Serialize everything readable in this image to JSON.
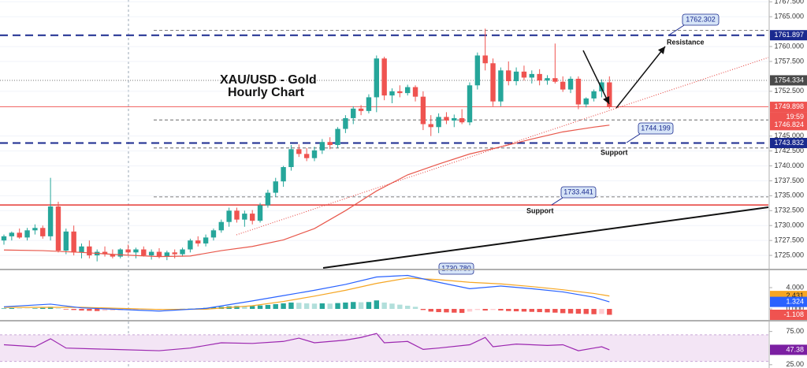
{
  "chart_data": [
    {
      "type": "candlestick",
      "title": "XAU/USD - Gold",
      "subtitle": "Hourly Chart",
      "open": [
        1727.5,
        1728.2,
        1728.8,
        1728,
        1729.2,
        1729.6,
        1728.2,
        1733.2,
        1725.8,
        1729,
        1725.5,
        1726.5,
        1725,
        1725.6,
        1725.2,
        1724.8,
        1726,
        1725.5,
        1726,
        1725,
        1725.6,
        1724.8,
        1725.5,
        1725.2,
        1726,
        1727.5,
        1727,
        1728,
        1729.2,
        1730.6,
        1732.5,
        1731,
        1732,
        1730.8,
        1733.4,
        1735.5,
        1737.4,
        1739.8,
        1742.8,
        1742,
        1741.3,
        1742.6,
        1744,
        1743.5,
        1746.2,
        1748,
        1749.6,
        1749.2,
        1751.5,
        1758,
        1751.8,
        1752.5,
        1752.2,
        1753.2,
        1751.6,
        1747,
        1746.5,
        1748.2,
        1747.6,
        1748,
        1747.3,
        1753.5,
        1758.5,
        1757.2,
        1750.8,
        1756,
        1754.2,
        1755.8,
        1754.8,
        1755.4,
        1754.3,
        1754.7,
        1754.1,
        1752.8,
        1754.6,
        1750.3,
        1751.3,
        1752.5,
        1754
      ],
      "high": [
        1728.5,
        1729,
        1729.5,
        1729.6,
        1730.2,
        1730,
        1738,
        1734,
        1729.5,
        1730,
        1727,
        1727.5,
        1726,
        1726.5,
        1726,
        1726.2,
        1726.8,
        1726.3,
        1726.5,
        1726,
        1726.2,
        1725.8,
        1726,
        1726.3,
        1727.8,
        1728.2,
        1728.5,
        1729.5,
        1731,
        1733,
        1733,
        1732.5,
        1732.6,
        1733.8,
        1736,
        1738,
        1740,
        1743.5,
        1743.6,
        1743,
        1743.2,
        1744.5,
        1744.8,
        1746.5,
        1748.5,
        1750,
        1750.2,
        1752,
        1758.5,
        1758.3,
        1753,
        1753.5,
        1753.6,
        1753.5,
        1752.5,
        1748.5,
        1748.8,
        1749,
        1748.6,
        1749.5,
        1754,
        1759,
        1763,
        1758,
        1756.5,
        1757.5,
        1756.5,
        1756.8,
        1756,
        1756.2,
        1755.2,
        1760.5,
        1755,
        1755,
        1755,
        1751.5,
        1752.8,
        1754.5,
        1755
      ],
      "low": [
        1726.8,
        1727.5,
        1727.8,
        1727.5,
        1728.5,
        1727.8,
        1727.5,
        1725.5,
        1725.2,
        1725,
        1724.5,
        1724.5,
        1724,
        1724.8,
        1724.5,
        1724.5,
        1725,
        1724.5,
        1724.8,
        1724.3,
        1724.5,
        1724.2,
        1724.5,
        1724.8,
        1725.5,
        1726.5,
        1726.5,
        1727.5,
        1728.8,
        1729.8,
        1730.5,
        1729.8,
        1730.2,
        1730.5,
        1733,
        1734.8,
        1736.5,
        1739.2,
        1741.5,
        1740.8,
        1740.8,
        1742,
        1742.8,
        1743,
        1745.5,
        1747,
        1748.5,
        1748.8,
        1749,
        1751,
        1750.5,
        1751.5,
        1751.8,
        1750.8,
        1746,
        1745,
        1745.5,
        1747,
        1746.5,
        1747,
        1746.8,
        1752.8,
        1756,
        1750,
        1750,
        1753.5,
        1753.5,
        1754.3,
        1753.8,
        1753.5,
        1753.6,
        1753.8,
        1752.4,
        1752.2,
        1749.5,
        1749.8,
        1750.8,
        1751.5,
        1749.6
      ],
      "close": [
        1728.2,
        1728.8,
        1728,
        1729.2,
        1729.6,
        1728.2,
        1733.2,
        1725.8,
        1729,
        1725.5,
        1726.5,
        1725,
        1725.6,
        1725.2,
        1724.8,
        1726,
        1725.5,
        1726,
        1725,
        1725.6,
        1724.8,
        1725.5,
        1725.2,
        1726,
        1727.5,
        1727,
        1728,
        1729.2,
        1730.6,
        1732.5,
        1731,
        1732,
        1730.8,
        1733.4,
        1735.5,
        1737.4,
        1739.8,
        1742.8,
        1742,
        1741.3,
        1742.6,
        1744,
        1743.5,
        1746.2,
        1748,
        1749.6,
        1749.2,
        1751.5,
        1758,
        1751.8,
        1752.5,
        1752.2,
        1753.2,
        1751.6,
        1747,
        1746.5,
        1748.2,
        1747.6,
        1748,
        1747.3,
        1753.5,
        1758.5,
        1757.2,
        1750.8,
        1756,
        1754.2,
        1755.8,
        1754.8,
        1755.4,
        1754.3,
        1754.7,
        1754.1,
        1752.8,
        1754.6,
        1750.3,
        1751.3,
        1752.5,
        1754,
        1749.898
      ],
      "up_color": "#26a69a",
      "down_color": "#ef5350",
      "moving_average": {
        "color": "#e8574b",
        "x": [
          0,
          5,
          10,
          15,
          20,
          24,
          28,
          32,
          36,
          40,
          44,
          48,
          52,
          56,
          60,
          64,
          68,
          72,
          76,
          78
        ],
        "values": [
          1725.9,
          1725.8,
          1725.5,
          1725.1,
          1724.8,
          1724.9,
          1725.8,
          1726.5,
          1727.6,
          1729.5,
          1732.5,
          1735.8,
          1738.5,
          1740.3,
          1742,
          1743.2,
          1744.5,
          1745.7,
          1746.5,
          1746.824
        ]
      },
      "ylim": [
        1722.9,
        1767.8
      ],
      "yticks": [
        {
          "value": 1767.5,
          "label": "1767.500"
        },
        {
          "value": 1765,
          "label": "1765.000"
        },
        {
          "value": 1760,
          "label": "1760.000"
        },
        {
          "value": 1757.5,
          "label": "1757.500"
        },
        {
          "value": 1752.5,
          "label": "1752.500"
        },
        {
          "value": 1745,
          "label": "1745.000"
        },
        {
          "value": 1742.5,
          "label": "1742.500"
        },
        {
          "value": 1740,
          "label": "1740.000"
        },
        {
          "value": 1737.5,
          "label": "1737.500"
        },
        {
          "value": 1735,
          "label": "1735.000"
        },
        {
          "value": 1732.5,
          "label": "1732.500"
        },
        {
          "value": 1730,
          "label": "1730.000"
        },
        {
          "value": 1727.5,
          "label": "1727.500"
        },
        {
          "value": 1725,
          "label": "1725.000"
        }
      ],
      "grid": true,
      "levels": [
        {
          "value": 1761.897,
          "label": "1761.897",
          "color": "#1a2a8f",
          "style": "dashed",
          "label_position": "axis"
        },
        {
          "value": 1743.832,
          "label": "1743.832",
          "color": "#1a2a8f",
          "style": "dashed",
          "label_position": "axis"
        },
        {
          "value": 1733.441,
          "label": "1733.441",
          "color": "#e53935",
          "style": "solid",
          "label_position": "callout"
        }
      ],
      "channel_lines": [
        1762.7,
        1747.7,
        1743.0,
        1734.8
      ],
      "price_labels": [
        {
          "value": 1754.334,
          "label": "1754.334",
          "color": "#4a4a4a",
          "line": "dotted"
        },
        {
          "value": 1749.898,
          "label": "1749.898",
          "color": "#ef5350",
          "line": "solid"
        },
        {
          "value": 1746.824,
          "label": "1746.824",
          "color": "#ef5350",
          "line": "none"
        }
      ],
      "countdown": "19:59",
      "annotations": [
        "1762.302",
        "1744.199",
        "1730.780",
        "Resistance",
        "Support",
        "Support"
      ]
    },
    {
      "type": "macd",
      "histogram": [
        0.1,
        0.15,
        0.1,
        0.05,
        0.1,
        0.2,
        0.4,
        0.1,
        -0.1,
        -0.2,
        -0.3,
        -0.35,
        -0.4,
        -0.35,
        -0.3,
        -0.25,
        -0.2,
        -0.15,
        -0.1,
        -0.05,
        -0.1,
        -0.08,
        -0.05,
        0.02,
        0.05,
        0.1,
        0.2,
        0.3,
        0.4,
        0.5,
        0.55,
        0.5,
        0.55,
        0.65,
        0.75,
        0.9,
        1.05,
        1.2,
        1.15,
        1.05,
        1.0,
        1.05,
        1.0,
        1.1,
        1.2,
        1.3,
        1.25,
        1.3,
        1.6,
        1.2,
        1.0,
        0.8,
        0.6,
        0.4,
        -0.2,
        -0.5,
        -0.6,
        -0.65,
        -0.7,
        -0.75,
        -0.5,
        -0.2,
        -0.3,
        -0.2,
        -0.3,
        -0.4,
        -0.45,
        -0.5,
        -0.55,
        -0.6,
        -0.65,
        -0.7,
        -0.8,
        -0.85,
        -0.9,
        -0.95,
        -1.0,
        -0.95,
        -1.108
      ],
      "hist_colors": {
        "up_rising": "#26a69a",
        "up_falling": "#b2dfdb",
        "down_falling": "#ef5350",
        "down_rising": "#ffcdd2"
      },
      "macd": {
        "color": "#2962ff",
        "x": [
          0,
          6,
          10,
          20,
          26,
          32,
          36,
          40,
          44,
          48,
          52,
          56,
          60,
          64,
          68,
          72,
          76,
          78
        ],
        "values": [
          0.4,
          0.9,
          0.2,
          -0.4,
          0.1,
          1.5,
          2.5,
          3.5,
          4.6,
          6.0,
          6.3,
          5.0,
          3.8,
          4.3,
          3.8,
          3.2,
          2.2,
          1.324
        ]
      },
      "signal": {
        "color": "#f5a623",
        "x": [
          0,
          10,
          20,
          26,
          32,
          36,
          40,
          44,
          48,
          52,
          56,
          60,
          64,
          68,
          72,
          76,
          78
        ],
        "values": [
          0.3,
          0.3,
          -0.1,
          -0.05,
          0.6,
          1.4,
          2.4,
          3.5,
          4.8,
          5.8,
          5.5,
          5.0,
          4.7,
          4.2,
          3.6,
          2.9,
          2.431
        ]
      },
      "ylim": [
        -2.07,
        7.26
      ],
      "yticks": [
        {
          "value": 4,
          "label": "4.000"
        },
        {
          "value": 0,
          "label": "0.000"
        }
      ],
      "value_labels": [
        {
          "value": 2.431,
          "label": "2.431",
          "color": "#f5a623"
        },
        {
          "value": 1.324,
          "label": "1.324",
          "color": "#2962ff"
        },
        {
          "value": -1.108,
          "label": "-1.108",
          "color": "#ef5350"
        }
      ]
    },
    {
      "type": "rsi",
      "x": [
        0,
        4,
        6,
        8,
        14,
        20,
        24,
        28,
        32,
        36,
        38,
        40,
        44,
        46,
        48,
        49,
        52,
        54,
        56,
        60,
        62,
        63,
        66,
        70,
        72,
        74,
        76,
        77,
        78
      ],
      "values": [
        55,
        52,
        64,
        50,
        48,
        46,
        50,
        58,
        57,
        60,
        65,
        58,
        62,
        66,
        72,
        58,
        60,
        48,
        50,
        55,
        66,
        52,
        56,
        54,
        55,
        46,
        50,
        52,
        47.38
      ],
      "color": "#9c27b0",
      "band": [
        30,
        70
      ],
      "band_color": "#f3e5f5",
      "ylim": [
        20,
        90
      ],
      "yticks": [
        {
          "value": 75,
          "label": "75.00"
        },
        {
          "value": 25,
          "label": "25.00"
        }
      ],
      "value_labels": [
        {
          "value": 47.38,
          "label": "47.38",
          "color": "#7b1fa2"
        }
      ]
    }
  ]
}
